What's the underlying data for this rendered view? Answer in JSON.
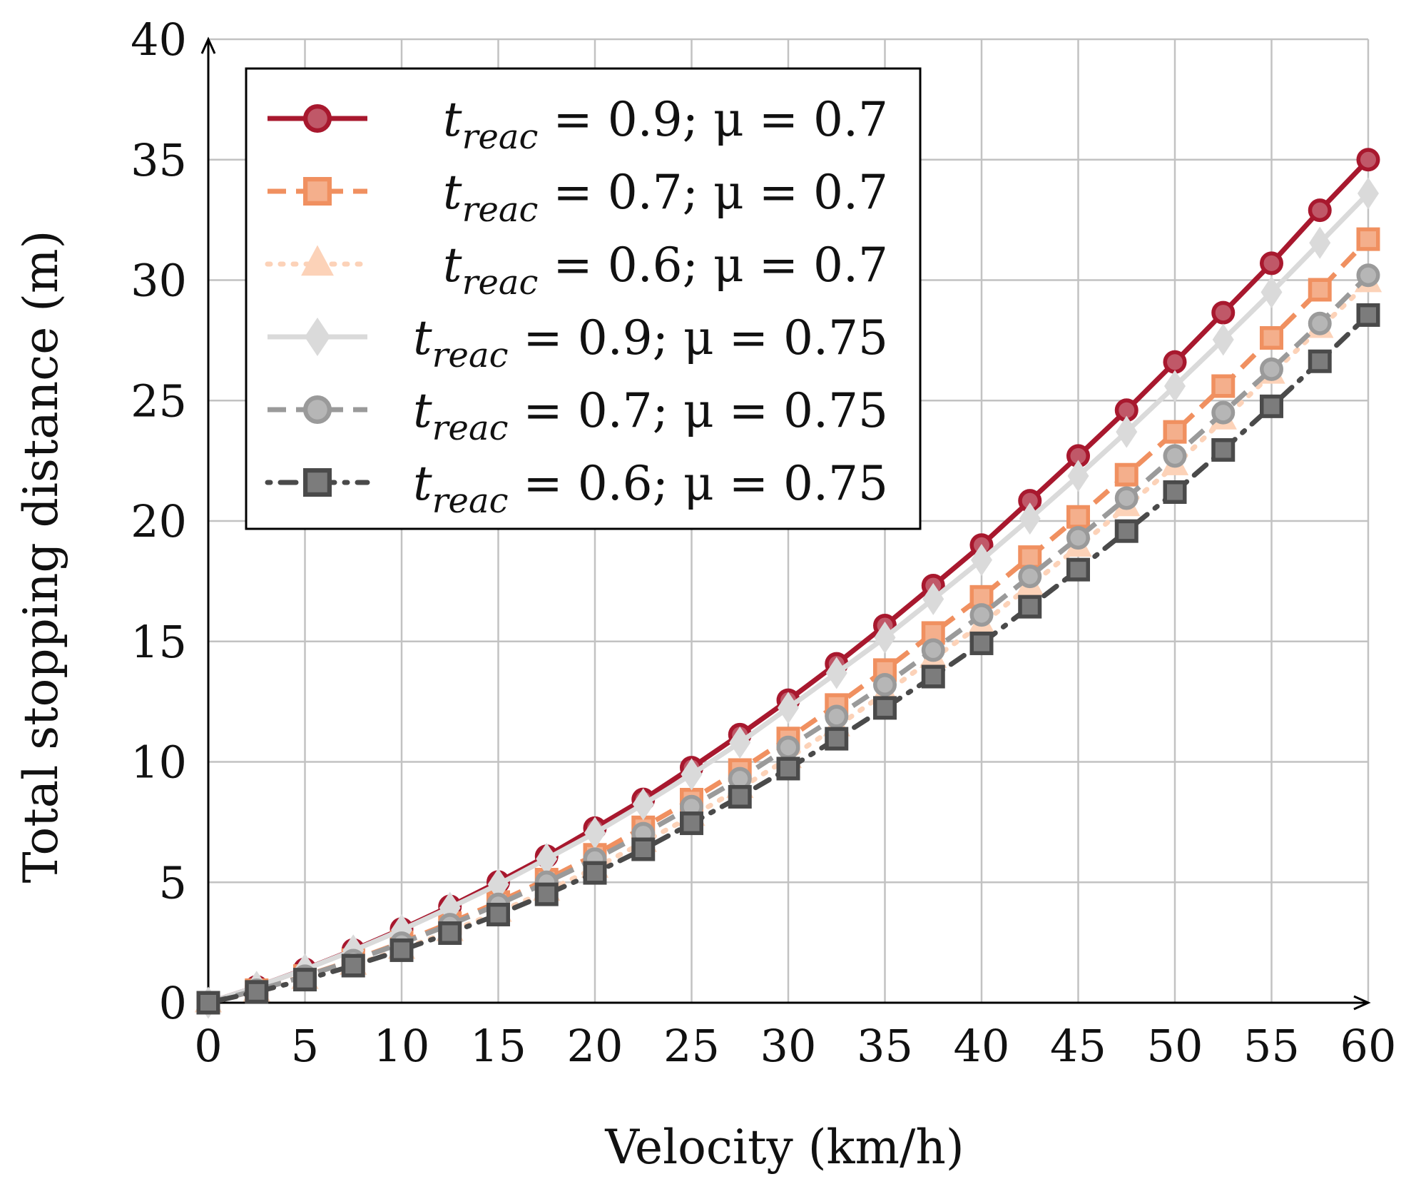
{
  "chart_data": {
    "type": "line",
    "title": "",
    "xlabel": "Velocity (km/h)",
    "ylabel": "Total stopping distance (m)",
    "xlim": [
      0,
      60
    ],
    "ylim": [
      0,
      40
    ],
    "xticks": [
      0,
      5,
      10,
      15,
      20,
      25,
      30,
      35,
      40,
      45,
      50,
      55,
      60
    ],
    "yticks": [
      0,
      5,
      10,
      15,
      20,
      25,
      30,
      35,
      40
    ],
    "grid": true,
    "legend_position": "top-left",
    "x": [
      0,
      2.5,
      5,
      7.5,
      10,
      12.5,
      15,
      17.5,
      20,
      22.5,
      25,
      27.5,
      30,
      32.5,
      35,
      37.5,
      40,
      42.5,
      45,
      47.5,
      50,
      52.5,
      55,
      57.5,
      60
    ],
    "series": [
      {
        "name": "t_reac = 0.9; μ = 0.7",
        "legend": {
          "var": "t",
          "sub": "reac",
          "rest": " = 0.9; μ = 0.7"
        },
        "color": "#a8182e",
        "marker": "circle",
        "dash": "solid",
        "values": [
          0,
          0.66,
          1.39,
          2.19,
          3.06,
          4.0,
          5.01,
          6.08,
          7.25,
          8.44,
          9.76,
          11.13,
          12.56,
          14.07,
          15.66,
          17.32,
          19.0,
          20.84,
          22.7,
          24.6,
          26.6,
          28.65,
          30.7,
          32.9,
          35.0
        ]
      },
      {
        "name": "t_reac = 0.7; μ = 0.7",
        "legend": {
          "var": "t",
          "sub": "reac",
          "rest": " = 0.7; μ = 0.7"
        },
        "color": "#f09060",
        "marker": "square",
        "dash": "dashed",
        "values": [
          0,
          0.52,
          1.11,
          1.77,
          2.5,
          3.31,
          4.18,
          5.11,
          6.14,
          7.28,
          8.43,
          9.66,
          10.97,
          12.36,
          13.81,
          15.35,
          16.85,
          18.5,
          20.17,
          21.92,
          23.7,
          25.6,
          27.6,
          29.6,
          31.7
        ]
      },
      {
        "name": "t_reac = 0.6; μ = 0.7",
        "legend": {
          "var": "t",
          "sub": "reac",
          "rest": " = 0.6; μ = 0.7"
        },
        "color": "#fcd2b8",
        "marker": "triangle",
        "dash": "dotted",
        "values": [
          0,
          0.45,
          0.97,
          1.56,
          2.22,
          2.96,
          3.76,
          4.63,
          5.59,
          6.66,
          7.74,
          8.9,
          10.14,
          11.46,
          12.85,
          14.3,
          15.7,
          17.32,
          18.92,
          20.6,
          22.3,
          24.2,
          26.1,
          28.0,
          29.9
        ]
      },
      {
        "name": "t_reac = 0.9; μ = 0.75",
        "legend": {
          "var": "t",
          "sub": "reac",
          "rest": " = 0.9; μ = 0.75"
        },
        "color": "#dadada",
        "marker": "diamond",
        "dash": "solid",
        "values": [
          0,
          0.66,
          1.38,
          2.17,
          3.02,
          3.94,
          4.91,
          5.97,
          7.05,
          8.24,
          9.48,
          10.8,
          12.24,
          13.69,
          15.16,
          16.76,
          18.38,
          20.1,
          21.87,
          23.7,
          25.6,
          27.53,
          29.5,
          31.55,
          33.6
        ]
      },
      {
        "name": "t_reac = 0.7; μ = 0.75",
        "legend": {
          "var": "t",
          "sub": "reac",
          "rest": " = 0.7; μ = 0.75"
        },
        "color": "#9a9a9a",
        "marker": "circle",
        "dash": "dashed",
        "values": [
          0,
          0.52,
          1.1,
          1.75,
          2.47,
          3.24,
          4.08,
          5.0,
          5.96,
          7.02,
          8.14,
          9.3,
          10.6,
          11.88,
          13.2,
          14.64,
          16.1,
          17.7,
          19.3,
          20.95,
          22.7,
          24.5,
          26.3,
          28.2,
          30.2
        ]
      },
      {
        "name": "t_reac = 0.6; μ = 0.75",
        "legend": {
          "var": "t",
          "sub": "reac",
          "rest": " = 0.6; μ = 0.75"
        },
        "color": "#4a4a4a",
        "marker": "square",
        "dash": "dashdot",
        "values": [
          0,
          0.45,
          0.96,
          1.54,
          2.18,
          2.89,
          3.66,
          4.5,
          5.39,
          6.37,
          7.45,
          8.55,
          9.72,
          10.96,
          12.24,
          13.54,
          14.92,
          16.44,
          17.98,
          19.58,
          21.2,
          22.95,
          24.76,
          26.63,
          28.55
        ]
      }
    ]
  }
}
